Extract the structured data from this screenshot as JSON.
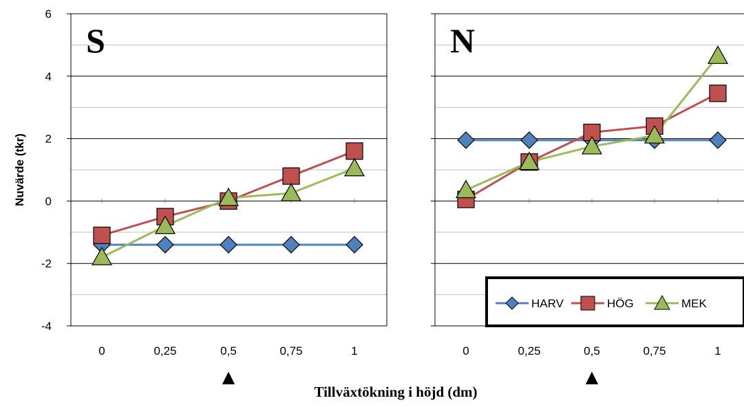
{
  "chart_data": {
    "type": "line",
    "xlabel": "Tillväxtökning i höjd (dm)",
    "ylabel": "Nuvärde (tkr)",
    "ylim": [
      -4,
      6
    ],
    "yticks": [
      "6",
      "4",
      "2",
      "0",
      "-2",
      "-4"
    ],
    "categories": [
      "0",
      "0,25",
      "0,5",
      "0,75",
      "1"
    ],
    "marker_symbol": "▲",
    "legend": {
      "position": "bottom-right",
      "entries": [
        "HARV",
        "HÖG",
        "MEK"
      ]
    },
    "grid": true,
    "colors": {
      "HARV": "#4F81BD",
      "HÖG": "#C0504D",
      "MEK": "#9BBB59"
    },
    "panels": [
      {
        "label": "S",
        "series": [
          {
            "name": "HARV",
            "values": [
              -1.4,
              -1.4,
              -1.4,
              -1.4,
              -1.4
            ]
          },
          {
            "name": "HÖG",
            "values": [
              -1.1,
              -0.5,
              0.0,
              0.8,
              1.6
            ]
          },
          {
            "name": "MEK",
            "values": [
              -1.8,
              -0.8,
              0.1,
              0.25,
              1.05
            ]
          }
        ]
      },
      {
        "label": "N",
        "series": [
          {
            "name": "HARV",
            "values": [
              1.95,
              1.95,
              1.95,
              1.95,
              1.95
            ]
          },
          {
            "name": "HÖG",
            "values": [
              0.05,
              1.25,
              2.2,
              2.4,
              3.45
            ]
          },
          {
            "name": "MEK",
            "values": [
              0.35,
              1.25,
              1.75,
              2.1,
              4.65
            ]
          }
        ]
      }
    ]
  }
}
